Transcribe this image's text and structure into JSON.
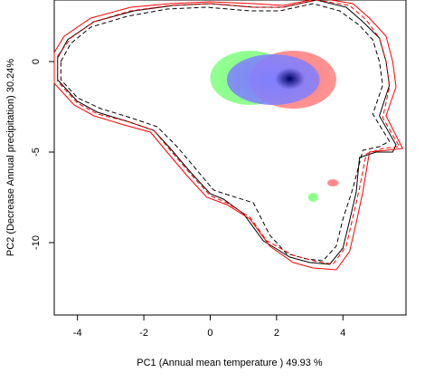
{
  "chart_data": {
    "type": "contour",
    "xlabel": "PC1 (Annual mean temperature ) 49.93 %",
    "ylabel": "PC2 (Decrease Annual precipitation) 30.24%",
    "xlim": [
      -4.7,
      5.9
    ],
    "ylim": [
      -14.0,
      3.4
    ],
    "xticks": [
      -4,
      -2,
      0,
      2,
      4
    ],
    "yticks": [
      0,
      -5,
      -10
    ],
    "grid": false,
    "box": true,
    "series": [
      {
        "style": "solid",
        "color": "#000000",
        "points": [
          [
            -4.6,
            0.2
          ],
          [
            -4.3,
            1.2
          ],
          [
            -3.5,
            2.2
          ],
          [
            -2.3,
            2.8
          ],
          [
            -1.1,
            3.1
          ],
          [
            0.0,
            3.2
          ],
          [
            1.3,
            3.0
          ],
          [
            2.2,
            3.0
          ],
          [
            3.2,
            3.4
          ],
          [
            4.1,
            3.0
          ],
          [
            4.6,
            2.2
          ],
          [
            5.1,
            1.3
          ],
          [
            5.3,
            0.0
          ],
          [
            5.4,
            -1.3
          ],
          [
            5.1,
            -3.0
          ],
          [
            5.6,
            -4.6
          ],
          [
            5.5,
            -5.0
          ],
          [
            5.0,
            -5.0
          ],
          [
            4.5,
            -5.3
          ],
          [
            4.4,
            -7.2
          ],
          [
            4.2,
            -8.8
          ],
          [
            4.0,
            -10.3
          ],
          [
            3.6,
            -11.2
          ],
          [
            3.0,
            -11.1
          ],
          [
            2.4,
            -10.8
          ],
          [
            1.6,
            -9.9
          ],
          [
            1.0,
            -8.4
          ],
          [
            0.4,
            -7.6
          ],
          [
            0.0,
            -7.3
          ],
          [
            -0.6,
            -6.1
          ],
          [
            -1.2,
            -4.8
          ],
          [
            -1.7,
            -3.8
          ],
          [
            -2.5,
            -3.3
          ],
          [
            -3.4,
            -2.8
          ],
          [
            -4.0,
            -2.2
          ],
          [
            -4.6,
            -1.0
          ],
          [
            -4.6,
            0.2
          ]
        ]
      },
      {
        "style": "dashed",
        "color": "#000000",
        "points": [
          [
            -4.5,
            0.0
          ],
          [
            -4.2,
            1.0
          ],
          [
            -3.6,
            1.9
          ],
          [
            -2.5,
            2.5
          ],
          [
            -1.3,
            2.9
          ],
          [
            -0.1,
            3.0
          ],
          [
            1.2,
            2.8
          ],
          [
            2.1,
            2.8
          ],
          [
            3.1,
            3.2
          ],
          [
            3.9,
            2.8
          ],
          [
            4.5,
            2.0
          ],
          [
            4.9,
            1.2
          ],
          [
            5.1,
            0.0
          ],
          [
            5.2,
            -1.3
          ],
          [
            4.9,
            -2.9
          ],
          [
            5.4,
            -4.4
          ],
          [
            5.1,
            -4.7
          ],
          [
            4.6,
            -4.9
          ],
          [
            4.3,
            -7.0
          ],
          [
            4.0,
            -8.7
          ],
          [
            3.8,
            -10.2
          ],
          [
            3.4,
            -11.0
          ],
          [
            2.9,
            -10.9
          ],
          [
            2.3,
            -10.6
          ],
          [
            1.8,
            -9.6
          ],
          [
            1.3,
            -7.8
          ],
          [
            0.6,
            -7.4
          ],
          [
            0.1,
            -7.1
          ],
          [
            -0.4,
            -6.0
          ],
          [
            -1.0,
            -4.7
          ],
          [
            -1.6,
            -3.6
          ],
          [
            -2.4,
            -3.1
          ],
          [
            -3.3,
            -2.6
          ],
          [
            -4.0,
            -2.0
          ],
          [
            -4.5,
            -1.0
          ],
          [
            -4.5,
            0.0
          ]
        ]
      },
      {
        "style": "solid",
        "color": "#ff0000",
        "points": [
          [
            -4.7,
            0.5
          ],
          [
            -4.4,
            1.4
          ],
          [
            -3.6,
            2.4
          ],
          [
            -2.4,
            3.0
          ],
          [
            -1.2,
            3.2
          ],
          [
            0.0,
            3.3
          ],
          [
            1.3,
            3.2
          ],
          [
            2.2,
            3.1
          ],
          [
            3.3,
            3.5
          ],
          [
            4.3,
            3.2
          ],
          [
            4.8,
            2.4
          ],
          [
            5.3,
            1.4
          ],
          [
            5.5,
            0.0
          ],
          [
            5.6,
            -1.4
          ],
          [
            5.3,
            -3.0
          ],
          [
            5.8,
            -4.8
          ],
          [
            5.3,
            -4.9
          ],
          [
            4.8,
            -5.0
          ],
          [
            4.6,
            -7.2
          ],
          [
            4.4,
            -8.9
          ],
          [
            4.2,
            -10.5
          ],
          [
            3.8,
            -11.5
          ],
          [
            3.1,
            -11.4
          ],
          [
            2.5,
            -11.1
          ],
          [
            1.8,
            -10.2
          ],
          [
            1.2,
            -8.7
          ],
          [
            0.5,
            -7.9
          ],
          [
            -0.1,
            -7.5
          ],
          [
            -0.7,
            -6.3
          ],
          [
            -1.3,
            -5.0
          ],
          [
            -1.8,
            -3.9
          ],
          [
            -2.6,
            -3.5
          ],
          [
            -3.5,
            -3.0
          ],
          [
            -4.1,
            -2.4
          ],
          [
            -4.7,
            -1.2
          ],
          [
            -4.7,
            0.5
          ]
        ]
      },
      {
        "style": "dashed",
        "color": "#ff0000",
        "points": [
          [
            -4.6,
            0.3
          ],
          [
            -4.2,
            1.3
          ],
          [
            -3.5,
            2.2
          ],
          [
            -2.4,
            2.8
          ],
          [
            -1.2,
            3.1
          ],
          [
            0.0,
            3.2
          ],
          [
            1.3,
            3.0
          ],
          [
            2.2,
            3.0
          ],
          [
            3.2,
            3.4
          ],
          [
            4.2,
            3.1
          ],
          [
            4.7,
            2.3
          ],
          [
            5.1,
            1.3
          ],
          [
            5.3,
            0.0
          ],
          [
            5.4,
            -1.4
          ],
          [
            5.2,
            -3.1
          ],
          [
            5.7,
            -4.7
          ],
          [
            5.2,
            -4.8
          ],
          [
            4.7,
            -5.1
          ],
          [
            4.5,
            -7.0
          ],
          [
            4.3,
            -8.6
          ],
          [
            4.1,
            -10.2
          ],
          [
            3.7,
            -11.2
          ],
          [
            3.1,
            -11.0
          ],
          [
            2.5,
            -10.7
          ],
          [
            1.7,
            -9.9
          ],
          [
            1.2,
            -8.6
          ],
          [
            0.5,
            -7.8
          ],
          [
            0.0,
            -7.4
          ],
          [
            -0.6,
            -6.2
          ],
          [
            -1.2,
            -4.9
          ],
          [
            -1.7,
            -3.8
          ],
          [
            -2.5,
            -3.3
          ],
          [
            -3.4,
            -2.9
          ],
          [
            -4.0,
            -2.3
          ],
          [
            -4.6,
            -1.1
          ],
          [
            -4.6,
            0.3
          ]
        ]
      }
    ],
    "overlap_regions": [
      {
        "name": "green",
        "color": "#80ff80",
        "cx": 1.2,
        "cy": -0.9,
        "rx": 1.2,
        "ry": 1.5
      },
      {
        "name": "red",
        "color": "#ff8080",
        "cx": 2.5,
        "cy": -1.0,
        "rx": 1.3,
        "ry": 1.6
      },
      {
        "name": "blue",
        "color": "#8080ff",
        "cx": 1.9,
        "cy": -1.0,
        "rx": 1.4,
        "ry": 1.4
      },
      {
        "name": "navy-core",
        "color": "#000066",
        "cx": 2.4,
        "cy": -0.95,
        "rx": 0.45,
        "ry": 0.6
      },
      {
        "name": "green-speck",
        "color": "#80ff80",
        "cx": 3.1,
        "cy": -7.5,
        "rx": 0.15,
        "ry": 0.25
      },
      {
        "name": "red-speck",
        "color": "#ff8080",
        "cx": 3.7,
        "cy": -6.7,
        "rx": 0.17,
        "ry": 0.2
      }
    ]
  }
}
